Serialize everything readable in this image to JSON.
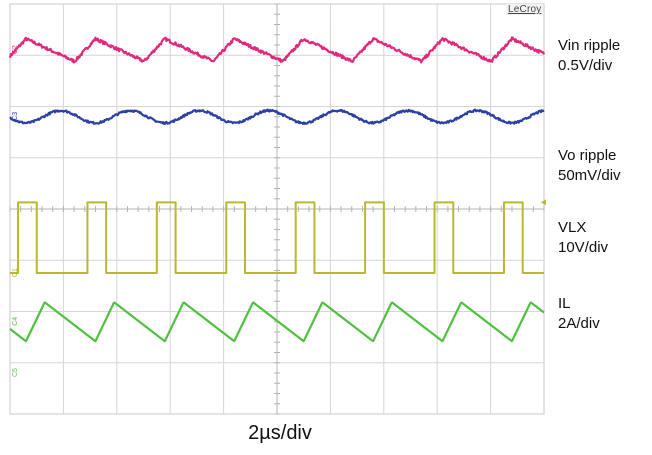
{
  "chart_data": {
    "type": "line",
    "title": "",
    "brand": "LeCroy",
    "x_scale": "2µs/div",
    "x_divisions": 10,
    "y_divisions": 8,
    "grid": true,
    "time_us": [
      0,
      20
    ],
    "series": [
      {
        "name": "Vin ripple",
        "scale_label": "0.5V/div",
        "color": "#e0287c",
        "channel_marker": "C2",
        "waveform": "triangle",
        "center_div": 3.1,
        "period_us": 2.6,
        "rise_fraction": 0.3,
        "amplitude_div": 0.22,
        "peak_at_us": 0.6,
        "noise_div": 0.03
      },
      {
        "name": "Vo ripple",
        "scale_label": "50mV/div",
        "color": "#2e3fa3",
        "channel_marker": "C3",
        "waveform": "sine",
        "center_div": 1.8,
        "period_us": 2.6,
        "amplitude_div": 0.12,
        "peak_at_us": 1.9,
        "noise_div": 0.02
      },
      {
        "name": "VLX",
        "scale_label": "10V/div",
        "color": "#b9b92c",
        "channel_marker": "C1",
        "waveform": "square",
        "high_div": 0.13,
        "low_div": -1.25,
        "period_us": 2.6,
        "high_fraction": 0.27,
        "first_rise_us": 0.3
      },
      {
        "name": "IL",
        "scale_label": "2A/div",
        "color": "#50c040",
        "channel_marker": "C4",
        "waveform": "triangle",
        "center_div": -2.2,
        "period_us": 2.6,
        "rise_fraction": 0.27,
        "amplitude_div": 0.38,
        "peak_at_us": 1.3,
        "noise_div": 0.0
      }
    ],
    "bottom_marker": "C5",
    "labels": {
      "vin_name": "Vin ripple",
      "vin_scale": "0.5V/div",
      "vo_name": "Vo ripple",
      "vo_scale": "50mV/div",
      "vlx_name": "VLX",
      "vlx_scale": "10V/div",
      "il_name": "IL",
      "il_scale": "2A/div"
    }
  }
}
